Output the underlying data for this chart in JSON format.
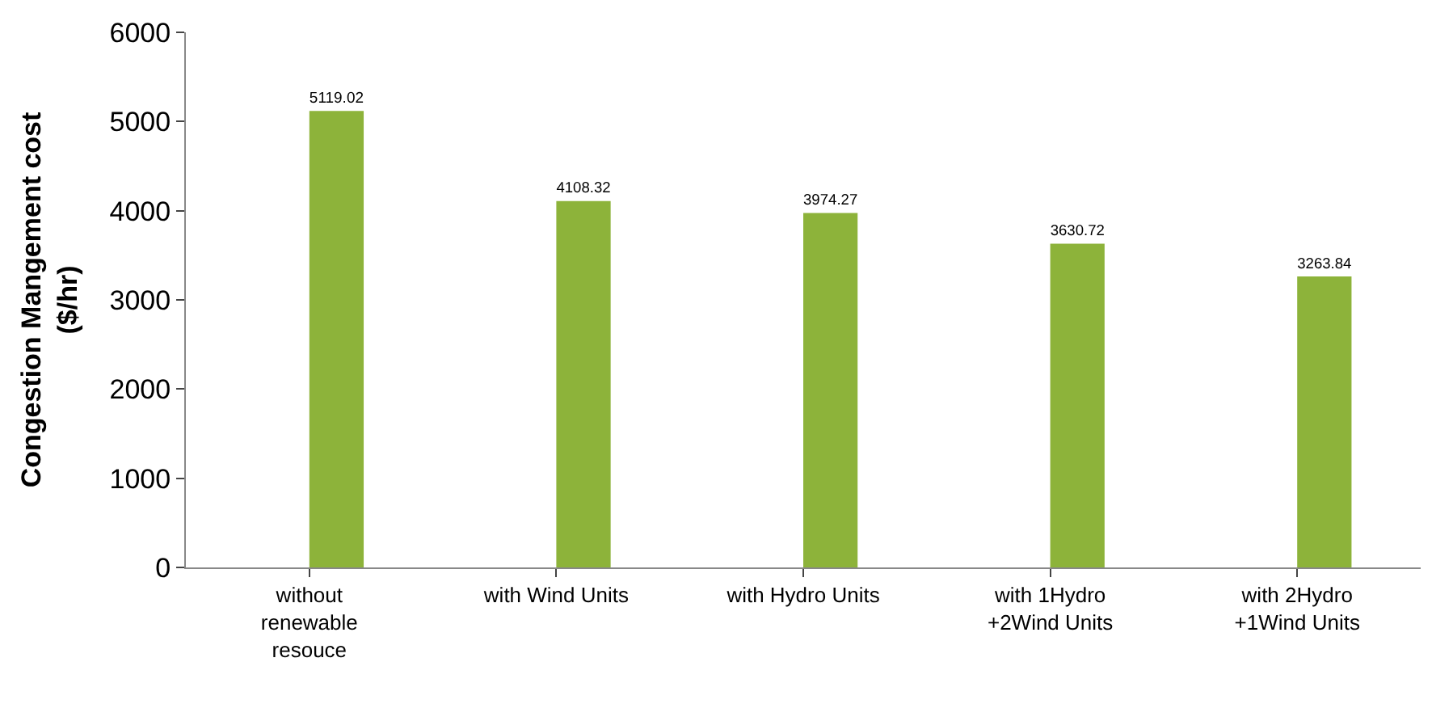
{
  "chart_data": {
    "type": "bar",
    "categories": [
      "without renewable resouce",
      "with Wind Units",
      "with Hydro Units",
      "with 1Hydro +2Wind Units",
      "with 2Hydro +1Wind Units"
    ],
    "values": [
      5119.02,
      4108.32,
      3974.27,
      3630.72,
      3263.84
    ],
    "color": "#8db33a",
    "ylabel": "Congestion Mangement cost ($/hr)",
    "ylim": [
      0,
      6000
    ],
    "yticks": [
      0,
      1000,
      2000,
      3000,
      4000,
      5000,
      6000
    ],
    "data_labels": true
  }
}
